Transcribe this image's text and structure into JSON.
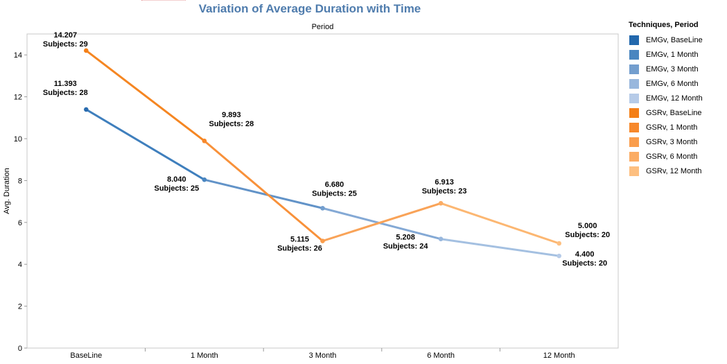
{
  "chart_data": {
    "type": "line",
    "title": "Variation of Average Duration with Time",
    "header": "Period",
    "ylabel": "Avg. Duration",
    "xlabel": "",
    "ylim": [
      0,
      15
    ],
    "yticks": [
      0,
      2,
      4,
      6,
      8,
      10,
      12,
      14
    ],
    "categories": [
      "BaseLine",
      "1 Month",
      "3 Month",
      "6 Month",
      "12 Month"
    ],
    "grid": false,
    "legend_position": "right",
    "legend_title": "Techniques, Period",
    "legend": [
      {
        "label": "EMGv, BaseLine",
        "color": "#2268ad"
      },
      {
        "label": "EMGv, 1 Month",
        "color": "#4a86c0"
      },
      {
        "label": "EMGv, 3 Month",
        "color": "#739ece"
      },
      {
        "label": "EMGv, 6 Month",
        "color": "#98b7dd"
      },
      {
        "label": "EMGv, 12 Month",
        "color": "#b6cbe8"
      },
      {
        "label": "GSRv, BaseLine",
        "color": "#f47f17"
      },
      {
        "label": "GSRv, 1 Month",
        "color": "#f7882b"
      },
      {
        "label": "GSRv, 3 Month",
        "color": "#fa9d4c"
      },
      {
        "label": "GSRv, 6 Month",
        "color": "#fbac64"
      },
      {
        "label": "GSRv, 12 Month",
        "color": "#fdbf80"
      }
    ],
    "series": [
      {
        "name": "EMGv",
        "values": [
          11.393,
          8.04,
          6.68,
          5.208,
          4.4
        ],
        "subjects": [
          28,
          25,
          25,
          24,
          20
        ],
        "value_labels": [
          "11.393",
          "8.040",
          "6.680",
          "5.208",
          "4.400"
        ],
        "subject_labels": [
          "Subjects: 28",
          "Subjects: 25",
          "Subjects: 25",
          "Subjects: 24",
          "Subjects: 20"
        ],
        "segment_colors": [
          "#3f7fbd",
          "#6293c8",
          "#84a9d5",
          "#a4c0e1"
        ],
        "point_colors": [
          "#2a6caf",
          "#4a86c0",
          "#739ece",
          "#98b7dd",
          "#b6cbe8"
        ]
      },
      {
        "name": "GSRv",
        "values": [
          14.207,
          9.893,
          5.115,
          6.913,
          5.0
        ],
        "subjects": [
          29,
          28,
          26,
          23,
          20
        ],
        "value_labels": [
          "14.207",
          "9.893",
          "5.115",
          "6.913",
          "5.000"
        ],
        "subject_labels": [
          "Subjects: 29",
          "Subjects: 28",
          "Subjects: 26",
          "Subjects: 23",
          "Subjects: 20"
        ],
        "segment_colors": [
          "#f58622",
          "#f8913a",
          "#f9a358",
          "#fcb772"
        ],
        "point_colors": [
          "#f47f17",
          "#f7882b",
          "#fa9d4c",
          "#fbac64",
          "#fdbf80"
        ]
      }
    ]
  }
}
